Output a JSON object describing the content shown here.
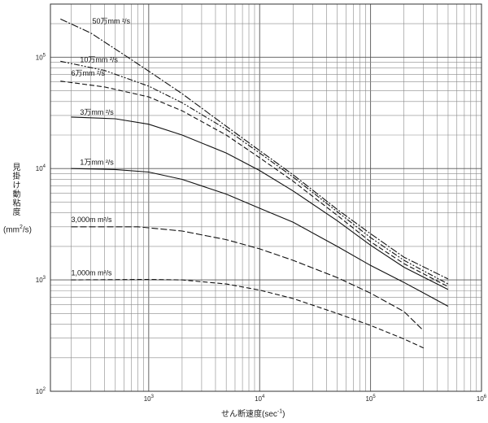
{
  "chart_data": {
    "type": "line",
    "title": "",
    "xlabel": "せん断速度",
    "xunit": "(sec",
    "xunit_sup": "-1",
    "xunit_end": ")",
    "ylabel": "見掛け動粘度",
    "yunit_open": "(mm",
    "yunit_sup": "2",
    "yunit_close": "/s)",
    "xscale": "log",
    "yscale": "log",
    "xlim": [
      130,
      1000000
    ],
    "ylim": [
      100,
      300000
    ],
    "grid": true,
    "legend": "inline labels",
    "x_ticks": [
      {
        "value": 1000,
        "base": "10",
        "exp": "3"
      },
      {
        "value": 10000,
        "base": "10",
        "exp": "4"
      },
      {
        "value": 100000,
        "base": "10",
        "exp": "5"
      },
      {
        "value": 1000000,
        "base": "10",
        "exp": "6"
      }
    ],
    "y_ticks": [
      {
        "value": 100,
        "base": "10",
        "exp": "2"
      },
      {
        "value": 1000,
        "base": "10",
        "exp": "3"
      },
      {
        "value": 10000,
        "base": "10",
        "exp": "4"
      },
      {
        "value": 100000,
        "base": "10",
        "exp": "5"
      }
    ],
    "series": [
      {
        "name": "50万mm ²/s",
        "dash": "9 2 2 2",
        "label_at": [
          310,
          200000
        ],
        "points": [
          [
            160,
            220000
          ],
          [
            300,
            165000
          ],
          [
            600,
            105000
          ],
          [
            1000,
            75000
          ],
          [
            2000,
            47000
          ],
          [
            5000,
            24000
          ],
          [
            10000,
            14500
          ],
          [
            20000,
            8800
          ],
          [
            50000,
            4300
          ],
          [
            100000,
            2600
          ],
          [
            200000,
            1600
          ],
          [
            500000,
            1020
          ]
        ]
      },
      {
        "name": "10万mm ²/s",
        "dash": "7 2 2 2 2 2",
        "label_at": [
          240,
          90000
        ],
        "points": [
          [
            160,
            92000
          ],
          [
            400,
            76000
          ],
          [
            1000,
            55000
          ],
          [
            2000,
            39000
          ],
          [
            5000,
            22500
          ],
          [
            10000,
            13800
          ],
          [
            20000,
            8400
          ],
          [
            50000,
            4100
          ],
          [
            100000,
            2400
          ],
          [
            200000,
            1500
          ],
          [
            500000,
            920
          ]
        ]
      },
      {
        "name": "6万mm ²/s",
        "dash": "6 3",
        "label_at": [
          200,
          68000
        ],
        "points": [
          [
            160,
            61000
          ],
          [
            400,
            54000
          ],
          [
            1000,
            44000
          ],
          [
            2000,
            33000
          ],
          [
            5000,
            20000
          ],
          [
            10000,
            12500
          ],
          [
            20000,
            7700
          ],
          [
            50000,
            3800
          ],
          [
            100000,
            2200
          ],
          [
            200000,
            1400
          ],
          [
            500000,
            870
          ]
        ]
      },
      {
        "name": "3万mm ²/s",
        "dash": "",
        "label_at": [
          240,
          30500
        ],
        "points": [
          [
            200,
            29000
          ],
          [
            500,
            28000
          ],
          [
            1000,
            25000
          ],
          [
            2000,
            20000
          ],
          [
            5000,
            13800
          ],
          [
            10000,
            9600
          ],
          [
            20000,
            6300
          ],
          [
            50000,
            3400
          ],
          [
            100000,
            2050
          ],
          [
            200000,
            1300
          ],
          [
            500000,
            820
          ]
        ]
      },
      {
        "name": "1万mm ²/s",
        "dash": "",
        "label_at": [
          240,
          10800
        ],
        "points": [
          [
            200,
            10000
          ],
          [
            500,
            9800
          ],
          [
            1000,
            9300
          ],
          [
            2000,
            8000
          ],
          [
            5000,
            5900
          ],
          [
            10000,
            4400
          ],
          [
            20000,
            3300
          ],
          [
            50000,
            2000
          ],
          [
            100000,
            1350
          ],
          [
            200000,
            950
          ],
          [
            500000,
            580
          ]
        ]
      },
      {
        "name": "3,000m  m²/s",
        "dash": "8 3",
        "label_at": [
          200,
          3300
        ],
        "points": [
          [
            200,
            3000
          ],
          [
            800,
            3000
          ],
          [
            2000,
            2750
          ],
          [
            5000,
            2300
          ],
          [
            10000,
            1900
          ],
          [
            20000,
            1500
          ],
          [
            50000,
            1050
          ],
          [
            100000,
            760
          ],
          [
            200000,
            520
          ],
          [
            300000,
            350
          ]
        ]
      },
      {
        "name": "1,000m  m²/s",
        "dash": "6 3",
        "label_at": [
          200,
          1100
        ],
        "points": [
          [
            200,
            1000
          ],
          [
            1000,
            1010
          ],
          [
            2000,
            1000
          ],
          [
            5000,
            920
          ],
          [
            10000,
            810
          ],
          [
            20000,
            680
          ],
          [
            50000,
            500
          ],
          [
            100000,
            390
          ],
          [
            200000,
            295
          ],
          [
            300000,
            245
          ]
        ]
      }
    ]
  }
}
